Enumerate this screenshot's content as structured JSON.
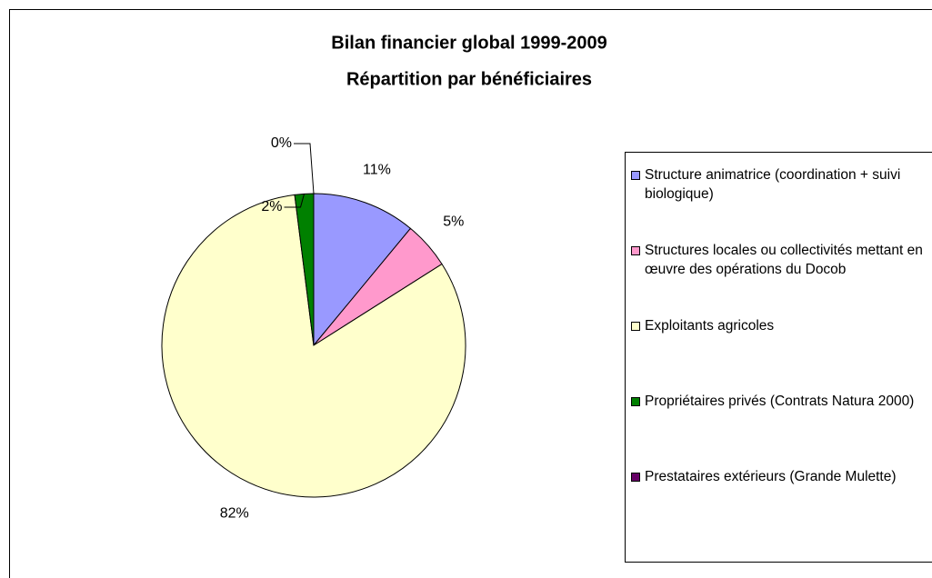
{
  "chart_data": {
    "type": "pie",
    "title": "Bilan financier global 1999-2009",
    "subtitle": "Répartition par bénéficiaires",
    "categories": [
      "Structure animatrice (coordination + suivi biologique)",
      "Structures locales ou collectivités mettant en œuvre des opérations du Docob",
      "Exploitants agricoles",
      "Propriétaires privés (Contrats Natura 2000)",
      "Prestataires extérieurs (Grande Mulette)"
    ],
    "values": [
      11,
      5,
      82,
      2,
      0
    ],
    "value_labels": [
      "11%",
      "5%",
      "82%",
      "2%",
      "0%"
    ],
    "colors": [
      "#9999ff",
      "#ff99cc",
      "#ffffcc",
      "#008000",
      "#660066"
    ],
    "legend": "right"
  }
}
